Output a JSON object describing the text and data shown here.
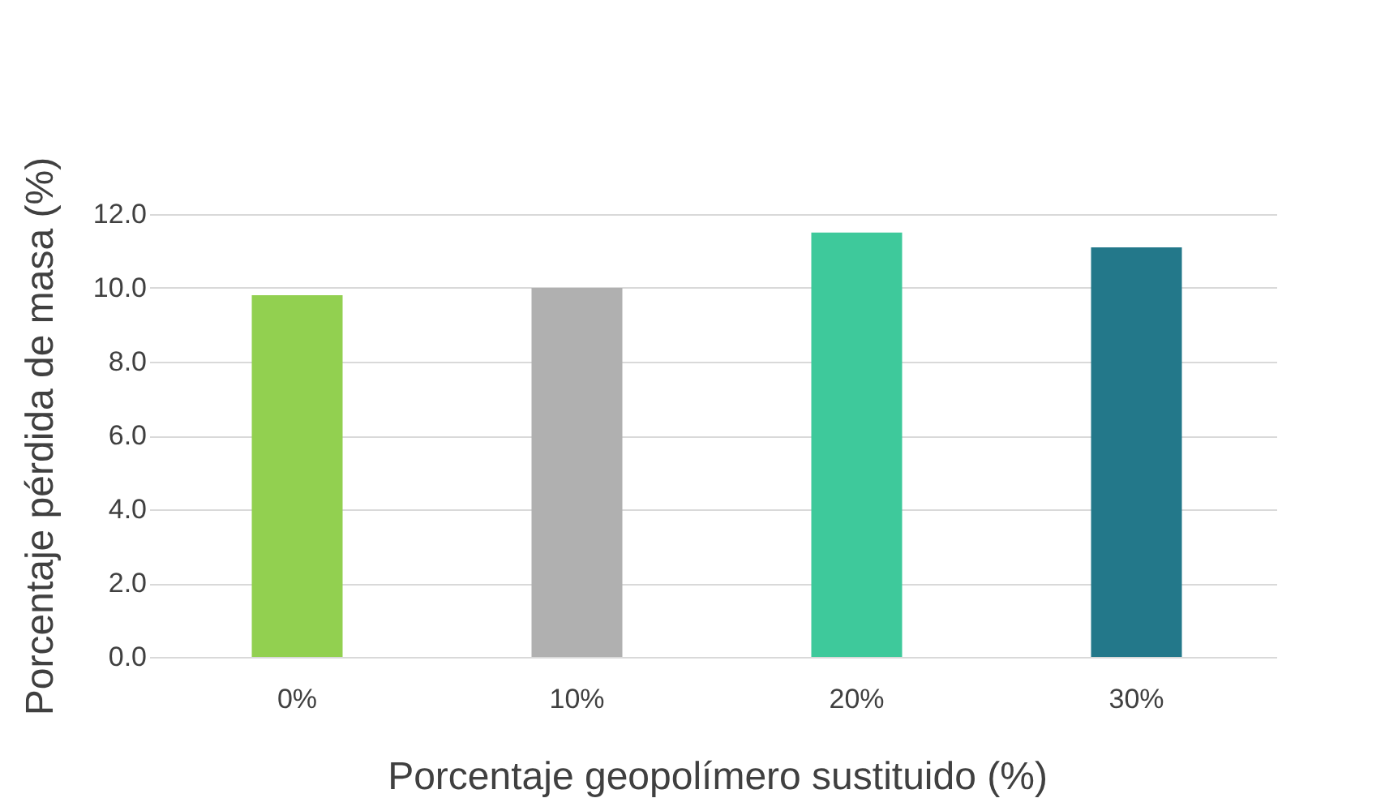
{
  "chart_data": {
    "type": "bar",
    "xlabel": "Porcentaje geopolímero sustituido (%)",
    "ylabel": "Porcentaje pérdida de masa (%)",
    "categories": [
      "0%",
      "10%",
      "20%",
      "30%"
    ],
    "values": [
      9.8,
      10.0,
      11.5,
      11.1
    ],
    "colors": [
      "#92d050",
      "#b0b0b0",
      "#3ec99b",
      "#23788a"
    ],
    "ylim": [
      0,
      12
    ],
    "yticks": [
      {
        "value": 0,
        "label": "0.0"
      },
      {
        "value": 2,
        "label": "2.0"
      },
      {
        "value": 4,
        "label": "4.0"
      },
      {
        "value": 6,
        "label": "6.0"
      },
      {
        "value": 8,
        "label": "8.0"
      },
      {
        "value": 10,
        "label": "10.0"
      },
      {
        "value": 12,
        "label": "12.0"
      }
    ],
    "grid": "y"
  }
}
